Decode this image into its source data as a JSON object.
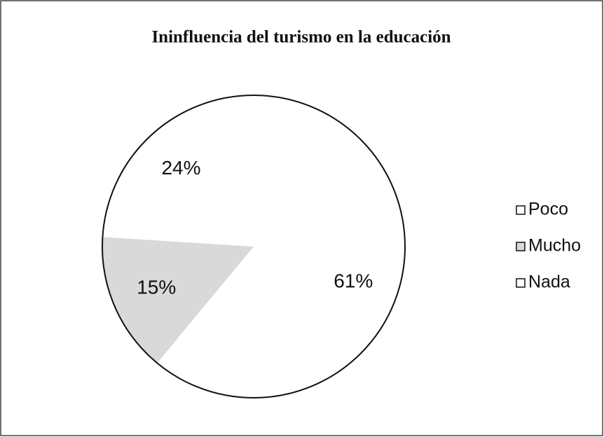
{
  "chart_data": {
    "type": "pie",
    "title": "Ininfluencia del turismo en la educación",
    "categories": [
      "Poco",
      "Mucho",
      "Nada"
    ],
    "values": [
      61,
      15,
      24
    ],
    "value_labels": [
      "61%",
      "15%",
      "24%"
    ],
    "colors": [
      "#ffffff",
      "#d9d9d9",
      "#ffffff"
    ],
    "legend": "right"
  }
}
